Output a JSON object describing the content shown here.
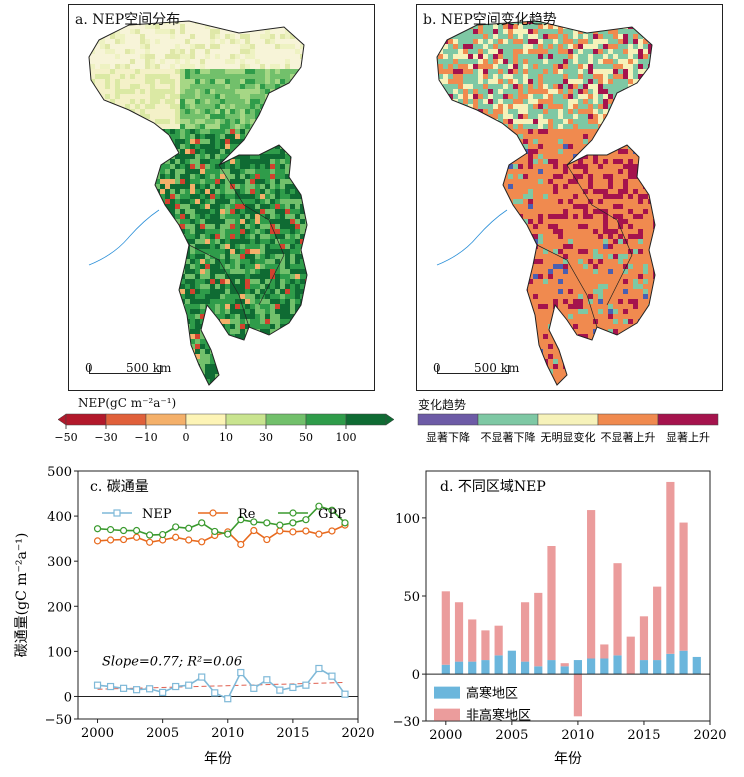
{
  "map_a": {
    "title": "a. NEP空间分布",
    "scale_zero": "0",
    "scale_label": "500 km"
  },
  "map_b": {
    "title": "b. NEP空间变化趋势",
    "scale_zero": "0",
    "scale_label": "500 km"
  },
  "legend_a": {
    "title": "NEP(gC m⁻²a⁻¹)",
    "ticks": [
      "−50",
      "−30",
      "−10",
      "0",
      "10",
      "30",
      "50",
      "100"
    ],
    "colors": [
      "#b2182b",
      "#e0603a",
      "#f4b06a",
      "#fdf4b6",
      "#c9e48f",
      "#72c06b",
      "#2f9c4a",
      "#0f6b33"
    ]
  },
  "legend_b": {
    "title": "变化趋势",
    "labels": [
      "显著下降",
      "不显著下降",
      "无明显变化",
      "不显著上升",
      "显著上升"
    ],
    "colors": [
      "#6d5ba6",
      "#7ec8a4",
      "#f6f2ba",
      "#f08a4f",
      "#a5134d"
    ]
  },
  "chart_data": [
    {
      "type": "line",
      "title": "c. 碳通量",
      "xlabel": "年份",
      "ylabel": "碳通量(gC m⁻²a⁻¹)",
      "xlim": [
        1998.5,
        2020
      ],
      "ylim": [
        -50,
        500
      ],
      "xticks": [
        2000,
        2005,
        2010,
        2015,
        2020
      ],
      "yticks": [
        -50,
        0,
        100,
        200,
        300,
        400,
        500
      ],
      "annotation": "Slope=0.77; R²=0.06",
      "x": [
        2000,
        2001,
        2002,
        2003,
        2004,
        2005,
        2006,
        2007,
        2008,
        2009,
        2010,
        2011,
        2012,
        2013,
        2014,
        2015,
        2016,
        2017,
        2018,
        2019
      ],
      "series": [
        {
          "name": "NEP",
          "color": "#7fb9d8",
          "marker": "square",
          "values": [
            25,
            22,
            18,
            15,
            17,
            9,
            22,
            25,
            43,
            8,
            -5,
            53,
            18,
            37,
            14,
            20,
            25,
            62,
            45,
            5
          ]
        },
        {
          "name": "Re",
          "color": "#e86a1e",
          "marker": "circle",
          "values": [
            345,
            347,
            348,
            353,
            342,
            347,
            353,
            347,
            343,
            357,
            365,
            337,
            368,
            348,
            367,
            365,
            367,
            360,
            367,
            380
          ]
        },
        {
          "name": "GPP",
          "color": "#3a9a2e",
          "marker": "circle",
          "values": [
            372,
            370,
            368,
            368,
            358,
            359,
            376,
            373,
            385,
            366,
            360,
            392,
            387,
            385,
            380,
            385,
            392,
            422,
            413,
            385
          ]
        }
      ],
      "trend": {
        "style": "dashed",
        "color": "#e06050",
        "start": 16,
        "end": 31
      }
    },
    {
      "type": "bar",
      "title": "d. 不同区域NEP",
      "xlabel": "年份",
      "xlim": [
        1998.5,
        2020
      ],
      "ylim": [
        -30,
        130
      ],
      "xticks": [
        2000,
        2005,
        2010,
        2015,
        2020
      ],
      "yticks": [
        -30,
        0,
        50,
        100
      ],
      "x": [
        2000,
        2001,
        2002,
        2003,
        2004,
        2005,
        2006,
        2007,
        2008,
        2009,
        2010,
        2011,
        2012,
        2013,
        2014,
        2015,
        2016,
        2017,
        2018,
        2019
      ],
      "series": [
        {
          "name": "高寒地区",
          "color": "#6bb6dc",
          "values": [
            6,
            8,
            8,
            9,
            12,
            15,
            8,
            5,
            9,
            5,
            9,
            10,
            10,
            12,
            0,
            9,
            9,
            13,
            15,
            11
          ]
        },
        {
          "name": "非高寒地区",
          "color": "#eb9c9c",
          "values": [
            53,
            46,
            35,
            28,
            31,
            8,
            46,
            52,
            82,
            7,
            -27,
            105,
            19,
            71,
            24,
            37,
            56,
            123,
            97,
            0
          ]
        }
      ]
    }
  ]
}
